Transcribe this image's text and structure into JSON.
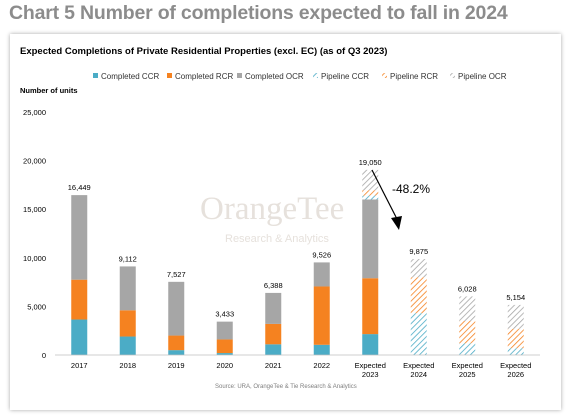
{
  "page": {
    "heading": "Chart 5 Number of completions expected to fall in 2024"
  },
  "chart_data": {
    "type": "bar",
    "stacked": true,
    "title": "Expected Completions of Private Residential Properties (excl. EC) (as of Q3 2023)",
    "ylabel": "Number of units",
    "xlabel": "",
    "ylim": [
      0,
      25000
    ],
    "yticks": [
      "0",
      "5,000",
      "10,000",
      "15,000",
      "20,000",
      "25,000"
    ],
    "grid": false,
    "legend_position": "top",
    "categories": [
      "2017",
      "2018",
      "2019",
      "2020",
      "2021",
      "2022",
      "Expected 2023",
      "Expected 2024",
      "Expected 2025",
      "Expected 2026"
    ],
    "totals_labels": [
      "16,449",
      "9,112",
      "7,527",
      "3,433",
      "6,388",
      "9,526",
      "19,050",
      "9,875",
      "6,028",
      "5,154"
    ],
    "totals": [
      16449,
      9112,
      7527,
      3433,
      6388,
      9526,
      19050,
      9875,
      6028,
      5154
    ],
    "series": [
      {
        "name": "Completed CCR",
        "color": "#4bacc6",
        "pattern": "solid",
        "values": [
          3650,
          1900,
          500,
          200,
          1100,
          1050,
          2150,
          0,
          0,
          0
        ]
      },
      {
        "name": "Completed RCR",
        "color": "#f58220",
        "pattern": "solid",
        "values": [
          4100,
          2700,
          1500,
          1400,
          2100,
          6000,
          5750,
          0,
          0,
          0
        ]
      },
      {
        "name": "Completed OCR",
        "color": "#a6a6a6",
        "pattern": "solid",
        "values": [
          8699,
          4512,
          5527,
          1833,
          3188,
          2476,
          8100,
          0,
          0,
          0
        ]
      },
      {
        "name": "Pipeline CCR",
        "color": "#4bacc6",
        "pattern": "hatched",
        "values": [
          0,
          0,
          0,
          0,
          0,
          0,
          400,
          4300,
          1200,
          700
        ]
      },
      {
        "name": "Pipeline RCR",
        "color": "#f58220",
        "pattern": "hatched",
        "values": [
          0,
          0,
          0,
          0,
          0,
          0,
          550,
          3700,
          2300,
          2000
        ]
      },
      {
        "name": "Pipeline OCR",
        "color": "#a6a6a6",
        "pattern": "hatched",
        "values": [
          0,
          0,
          0,
          0,
          0,
          0,
          2100,
          1875,
          2528,
          2454
        ]
      }
    ],
    "annotations": [
      {
        "text": "-48.2%",
        "type": "arrow",
        "from": "Expected 2023",
        "to": "Expected 2024"
      }
    ],
    "watermark": {
      "brand": "OrangeTee",
      "sub": "Research & Analytics"
    },
    "source": "Source: URA, OrangeTee & Tie Research & Analytics"
  }
}
